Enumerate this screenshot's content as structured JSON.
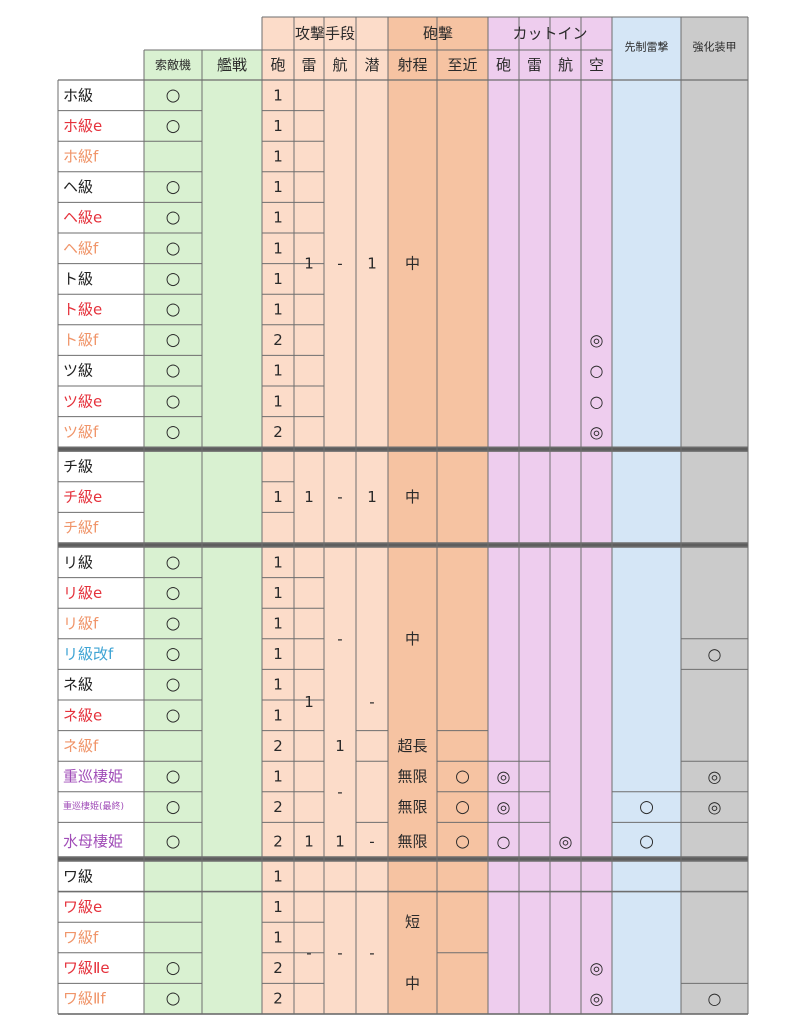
{
  "header": {
    "group_attack": "攻撃手段",
    "group_gunfire": "砲撃",
    "group_cutin": "カットイン",
    "preemptive_torpedo": "先制雷撃",
    "reinforced_armor": "強化装甲",
    "recon": "索敵機",
    "fighter": "艦戦",
    "attack_cols": [
      "砲",
      "雷",
      "航",
      "潜"
    ],
    "gunfire_cols": [
      "射程",
      "至近"
    ],
    "cutin_cols": [
      "砲",
      "雷",
      "航",
      "空"
    ]
  },
  "colors": {
    "recon": "#d9f1d1",
    "fighter": "#d9f1d1",
    "attack": "#fcdcc9",
    "gunfire": "#f6c3a2",
    "cutin": "#eecdee",
    "preemptive": "#d5e6f6",
    "armor": "#cbcbcb",
    "name_black": "#222222",
    "name_red": "#e5323c",
    "name_orange": "#f0956a",
    "name_blue": "#3fa4d4",
    "name_purple": "#a14db8"
  },
  "ships": [
    {
      "name": "ホ級",
      "color": "black",
      "recon": "○",
      "gun": "1"
    },
    {
      "name": "ホ級e",
      "color": "red",
      "recon": "○",
      "gun": "1"
    },
    {
      "name": "ホ級f",
      "color": "orange",
      "recon": "",
      "gun": "1"
    },
    {
      "name": "ヘ級",
      "color": "black",
      "recon": "○",
      "gun": "1"
    },
    {
      "name": "ヘ級e",
      "color": "red",
      "recon": "○",
      "gun": "1"
    },
    {
      "name": "ヘ級f",
      "color": "orange",
      "recon": "○",
      "gun": "1"
    },
    {
      "name": "ト級",
      "color": "black",
      "recon": "○",
      "gun": "1"
    },
    {
      "name": "ト級e",
      "color": "red",
      "recon": "○",
      "gun": "1"
    },
    {
      "name": "ト級f",
      "color": "orange",
      "recon": "○",
      "gun": "2",
      "cutin_air": "◎"
    },
    {
      "name": "ツ級",
      "color": "black",
      "recon": "○",
      "gun": "1",
      "cutin_air": "○"
    },
    {
      "name": "ツ級e",
      "color": "red",
      "recon": "○",
      "gun": "1",
      "cutin_air": "○"
    },
    {
      "name": "ツ級f",
      "color": "orange",
      "recon": "○",
      "gun": "2",
      "cutin_air": "◎"
    },
    {
      "name": "チ級",
      "color": "black",
      "recon": ""
    },
    {
      "name": "チ級e",
      "color": "red",
      "recon": ""
    },
    {
      "name": "チ級f",
      "color": "orange",
      "recon": ""
    },
    {
      "name": "リ級",
      "color": "black",
      "recon": "○",
      "gun": "1"
    },
    {
      "name": "リ級e",
      "color": "red",
      "recon": "○",
      "gun": "1"
    },
    {
      "name": "リ級f",
      "color": "orange",
      "recon": "○",
      "gun": "1"
    },
    {
      "name": "リ級改f",
      "color": "blue",
      "recon": "○",
      "gun": "1",
      "armor": "○"
    },
    {
      "name": "ネ級",
      "color": "black",
      "recon": "○",
      "gun": "1"
    },
    {
      "name": "ネ級e",
      "color": "red",
      "recon": "○",
      "gun": "1"
    },
    {
      "name": "ネ級f",
      "color": "orange",
      "recon": "",
      "gun": "2",
      "air": "1",
      "range": "超長"
    },
    {
      "name": "重巡棲姫",
      "color": "purple",
      "recon": "○",
      "gun": "1",
      "range": "無限",
      "closein": "○",
      "cutin_gun": "◎",
      "armor": "◎"
    },
    {
      "name": "重巡棲姫(最終)",
      "color": "purple",
      "small": true,
      "recon": "○",
      "gun": "2",
      "range": "無限",
      "closein": "○",
      "cutin_gun": "◎",
      "preemptive": "○",
      "armor": "◎"
    },
    {
      "name": "水母棲姫",
      "color": "purple",
      "recon": "○",
      "gun": "2",
      "torp": "1",
      "air": "1",
      "sub": "-",
      "range": "無限",
      "closein": "○",
      "cutin_gun": "○",
      "cutin_air_atk": "◎",
      "preemptive": "○"
    },
    {
      "name": "ワ級",
      "color": "black",
      "recon": "",
      "gun": "1"
    },
    {
      "name": "ワ級e",
      "color": "red",
      "recon": "",
      "gun": "1"
    },
    {
      "name": "ワ級f",
      "color": "orange",
      "recon": "",
      "gun": "1"
    },
    {
      "name": "ワ級Ⅱe",
      "color": "red",
      "recon": "○",
      "gun": "2",
      "cutin_air": "◎"
    },
    {
      "name": "ワ級Ⅱf",
      "color": "orange",
      "recon": "○",
      "gun": "2",
      "cutin_air": "◎",
      "armor": "○"
    }
  ],
  "merged": {
    "g1_torp": "1",
    "g1_air": "-",
    "g1_sub": "1",
    "g1_range": "中",
    "g2_gun": "1",
    "g2_torp": "1",
    "g2_air": "-",
    "g2_sub": "1",
    "g2_range": "中",
    "g3_torp": "1",
    "g3_air": "-",
    "g3_sub": "-",
    "g3_range": "中",
    "g3_air_b": "-",
    "g4_range_a": "短",
    "g4_torp": "-",
    "g4_air": "-",
    "g4_sub": "-",
    "g4_range_b": "中"
  }
}
